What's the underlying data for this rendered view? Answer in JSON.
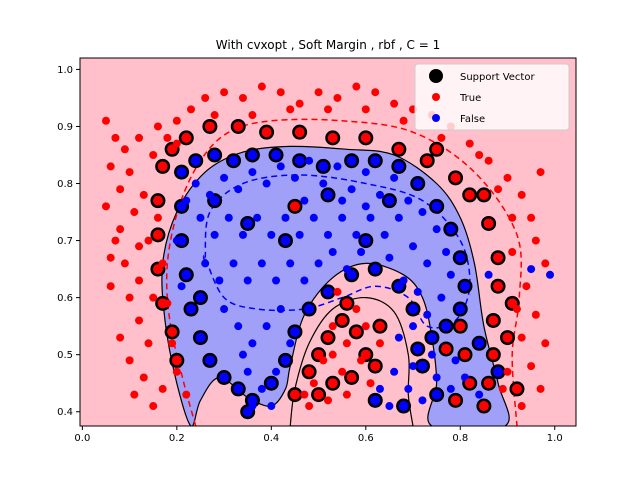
{
  "chart_data": {
    "type": "scatter",
    "title": "With cvxopt , Soft Margin , rbf , C = 1",
    "xlabel": "",
    "ylabel": "",
    "xlim": [
      -0.005,
      1.045
    ],
    "ylim": [
      0.375,
      1.02
    ],
    "xticks": [
      "0.0",
      "0.2",
      "0.4",
      "0.6",
      "0.8",
      "1.0"
    ],
    "xtick_values": [
      0.0,
      0.2,
      0.4,
      0.6,
      0.8,
      1.0
    ],
    "yticks": [
      "0.4",
      "0.5",
      "0.6",
      "0.7",
      "0.8",
      "0.9",
      "1.0"
    ],
    "ytick_values": [
      0.4,
      0.5,
      0.6,
      0.7,
      0.8,
      0.9,
      1.0
    ],
    "grid": false,
    "legend_position": "top-right",
    "legend": [
      {
        "label": "Support Vector",
        "marker": "black-circle"
      },
      {
        "label": "True",
        "marker": "red-dot"
      },
      {
        "label": "False",
        "marker": "blue-dot"
      }
    ],
    "colors": {
      "true_region": "#ffc0cb",
      "false_region": "#a0a0f8",
      "true_point": "#ff0000",
      "false_point": "#0000ff",
      "support_edge": "#000000",
      "margin_line": "#ff0000",
      "margin_line_false": "#0000ff"
    },
    "decision_boundary": [
      [
        0.23,
        0.375
      ],
      [
        0.2,
        0.45
      ],
      [
        0.175,
        0.56
      ],
      [
        0.17,
        0.66
      ],
      [
        0.2,
        0.75
      ],
      [
        0.26,
        0.82
      ],
      [
        0.34,
        0.855
      ],
      [
        0.44,
        0.865
      ],
      [
        0.56,
        0.86
      ],
      [
        0.66,
        0.85
      ],
      [
        0.75,
        0.8
      ],
      [
        0.8,
        0.74
      ],
      [
        0.83,
        0.66
      ],
      [
        0.85,
        0.55
      ],
      [
        0.88,
        0.45
      ],
      [
        0.895,
        0.375
      ],
      [
        0.74,
        0.375
      ],
      [
        0.75,
        0.45
      ],
      [
        0.74,
        0.53
      ],
      [
        0.72,
        0.6
      ],
      [
        0.68,
        0.64
      ],
      [
        0.6,
        0.66
      ],
      [
        0.53,
        0.635
      ],
      [
        0.47,
        0.57
      ],
      [
        0.44,
        0.48
      ],
      [
        0.43,
        0.44
      ],
      [
        0.4,
        0.41
      ],
      [
        0.35,
        0.425
      ],
      [
        0.29,
        0.46
      ],
      [
        0.25,
        0.42
      ]
    ],
    "inner_region": [
      [
        0.44,
        0.375
      ],
      [
        0.45,
        0.44
      ],
      [
        0.48,
        0.52
      ],
      [
        0.53,
        0.58
      ],
      [
        0.6,
        0.6
      ],
      [
        0.66,
        0.575
      ],
      [
        0.69,
        0.5
      ],
      [
        0.69,
        0.43
      ],
      [
        0.7,
        0.375
      ]
    ],
    "margin_true": [
      [
        0.24,
        0.375
      ],
      [
        0.215,
        0.45
      ],
      [
        0.185,
        0.56
      ],
      [
        0.18,
        0.66
      ],
      [
        0.205,
        0.76
      ],
      [
        0.25,
        0.84
      ],
      [
        0.31,
        0.89
      ],
      [
        0.4,
        0.91
      ],
      [
        0.55,
        0.91
      ],
      [
        0.7,
        0.89
      ],
      [
        0.83,
        0.82
      ],
      [
        0.92,
        0.71
      ],
      [
        0.925,
        0.6
      ],
      [
        0.91,
        0.5
      ],
      [
        0.92,
        0.375
      ]
    ],
    "margin_false": [
      [
        0.26,
        0.67
      ],
      [
        0.27,
        0.75
      ],
      [
        0.34,
        0.8
      ],
      [
        0.46,
        0.815
      ],
      [
        0.6,
        0.8
      ],
      [
        0.72,
        0.77
      ],
      [
        0.8,
        0.7
      ],
      [
        0.82,
        0.62
      ],
      [
        0.79,
        0.56
      ],
      [
        0.73,
        0.55
      ],
      [
        0.69,
        0.6
      ],
      [
        0.62,
        0.62
      ],
      [
        0.55,
        0.6
      ],
      [
        0.47,
        0.58
      ],
      [
        0.37,
        0.58
      ],
      [
        0.3,
        0.6
      ],
      [
        0.26,
        0.67
      ]
    ],
    "true_points": [
      [
        0.05,
        0.91
      ],
      [
        0.07,
        0.88
      ],
      [
        0.06,
        0.83
      ],
      [
        0.09,
        0.86
      ],
      [
        0.08,
        0.79
      ],
      [
        0.05,
        0.76
      ],
      [
        0.1,
        0.82
      ],
      [
        0.12,
        0.88
      ],
      [
        0.11,
        0.75
      ],
      [
        0.07,
        0.7
      ],
      [
        0.09,
        0.66
      ],
      [
        0.06,
        0.62
      ],
      [
        0.1,
        0.6
      ],
      [
        0.12,
        0.56
      ],
      [
        0.08,
        0.53
      ],
      [
        0.1,
        0.49
      ],
      [
        0.13,
        0.46
      ],
      [
        0.11,
        0.43
      ],
      [
        0.15,
        0.41
      ],
      [
        0.14,
        0.52
      ],
      [
        0.12,
        0.63
      ],
      [
        0.14,
        0.7
      ],
      [
        0.13,
        0.78
      ],
      [
        0.15,
        0.85
      ],
      [
        0.16,
        0.9
      ],
      [
        0.18,
        0.88
      ],
      [
        0.2,
        0.91
      ],
      [
        0.23,
        0.93
      ],
      [
        0.26,
        0.95
      ],
      [
        0.3,
        0.96
      ],
      [
        0.34,
        0.95
      ],
      [
        0.38,
        0.97
      ],
      [
        0.42,
        0.96
      ],
      [
        0.46,
        0.94
      ],
      [
        0.5,
        0.96
      ],
      [
        0.54,
        0.95
      ],
      [
        0.58,
        0.97
      ],
      [
        0.62,
        0.96
      ],
      [
        0.66,
        0.94
      ],
      [
        0.7,
        0.93
      ],
      [
        0.74,
        0.92
      ],
      [
        0.78,
        0.9
      ],
      [
        0.82,
        0.87
      ],
      [
        0.86,
        0.84
      ],
      [
        0.9,
        0.81
      ],
      [
        0.93,
        0.78
      ],
      [
        0.95,
        0.74
      ],
      [
        0.97,
        0.82
      ],
      [
        0.96,
        0.7
      ],
      [
        0.98,
        0.66
      ],
      [
        0.94,
        0.62
      ],
      [
        0.96,
        0.57
      ],
      [
        0.98,
        0.52
      ],
      [
        0.95,
        0.48
      ],
      [
        0.97,
        0.44
      ],
      [
        0.93,
        0.41
      ],
      [
        0.16,
        0.74
      ],
      [
        0.17,
        0.66
      ],
      [
        0.18,
        0.59
      ],
      [
        0.19,
        0.52
      ],
      [
        0.2,
        0.47
      ],
      [
        0.22,
        0.43
      ],
      [
        0.17,
        0.44
      ],
      [
        0.15,
        0.6
      ],
      [
        0.08,
        0.72
      ],
      [
        0.06,
        0.67
      ],
      [
        0.12,
        0.69
      ],
      [
        0.2,
        0.87
      ],
      [
        0.28,
        0.92
      ],
      [
        0.36,
        0.92
      ],
      [
        0.44,
        0.93
      ],
      [
        0.52,
        0.93
      ],
      [
        0.6,
        0.93
      ],
      [
        0.68,
        0.91
      ],
      [
        0.76,
        0.88
      ],
      [
        0.84,
        0.85
      ],
      [
        0.88,
        0.79
      ],
      [
        0.91,
        0.74
      ],
      [
        0.91,
        0.68
      ],
      [
        0.92,
        0.58
      ],
      [
        0.93,
        0.53
      ],
      [
        0.9,
        0.47
      ],
      [
        0.89,
        0.44
      ],
      [
        0.53,
        0.55
      ],
      [
        0.56,
        0.52
      ],
      [
        0.59,
        0.49
      ],
      [
        0.55,
        0.47
      ],
      [
        0.51,
        0.49
      ],
      [
        0.49,
        0.45
      ],
      [
        0.52,
        0.42
      ],
      [
        0.56,
        0.43
      ],
      [
        0.6,
        0.55
      ],
      [
        0.63,
        0.52
      ],
      [
        0.61,
        0.45
      ],
      [
        0.58,
        0.58
      ],
      [
        0.54,
        0.61
      ],
      [
        0.48,
        0.41
      ],
      [
        0.53,
        0.5
      ],
      [
        0.47,
        0.43
      ]
    ],
    "false_points": [
      [
        0.24,
        0.8
      ],
      [
        0.27,
        0.78
      ],
      [
        0.3,
        0.81
      ],
      [
        0.33,
        0.79
      ],
      [
        0.36,
        0.82
      ],
      [
        0.39,
        0.8
      ],
      [
        0.42,
        0.83
      ],
      [
        0.45,
        0.81
      ],
      [
        0.48,
        0.84
      ],
      [
        0.51,
        0.8
      ],
      [
        0.54,
        0.83
      ],
      [
        0.57,
        0.79
      ],
      [
        0.6,
        0.82
      ],
      [
        0.63,
        0.78
      ],
      [
        0.66,
        0.81
      ],
      [
        0.69,
        0.77
      ],
      [
        0.72,
        0.75
      ],
      [
        0.75,
        0.72
      ],
      [
        0.77,
        0.68
      ],
      [
        0.78,
        0.64
      ],
      [
        0.76,
        0.6
      ],
      [
        0.73,
        0.57
      ],
      [
        0.7,
        0.55
      ],
      [
        0.67,
        0.53
      ],
      [
        0.25,
        0.74
      ],
      [
        0.28,
        0.71
      ],
      [
        0.31,
        0.74
      ],
      [
        0.34,
        0.71
      ],
      [
        0.37,
        0.74
      ],
      [
        0.4,
        0.71
      ],
      [
        0.43,
        0.74
      ],
      [
        0.46,
        0.71
      ],
      [
        0.49,
        0.74
      ],
      [
        0.52,
        0.71
      ],
      [
        0.55,
        0.74
      ],
      [
        0.58,
        0.71
      ],
      [
        0.61,
        0.74
      ],
      [
        0.64,
        0.71
      ],
      [
        0.67,
        0.74
      ],
      [
        0.7,
        0.69
      ],
      [
        0.73,
        0.66
      ],
      [
        0.26,
        0.66
      ],
      [
        0.29,
        0.63
      ],
      [
        0.32,
        0.66
      ],
      [
        0.35,
        0.63
      ],
      [
        0.38,
        0.66
      ],
      [
        0.41,
        0.63
      ],
      [
        0.44,
        0.66
      ],
      [
        0.47,
        0.63
      ],
      [
        0.5,
        0.66
      ],
      [
        0.53,
        0.68
      ],
      [
        0.56,
        0.65
      ],
      [
        0.59,
        0.68
      ],
      [
        0.62,
        0.65
      ],
      [
        0.65,
        0.67
      ],
      [
        0.68,
        0.63
      ],
      [
        0.71,
        0.61
      ],
      [
        0.3,
        0.58
      ],
      [
        0.33,
        0.55
      ],
      [
        0.36,
        0.52
      ],
      [
        0.39,
        0.55
      ],
      [
        0.42,
        0.58
      ],
      [
        0.35,
        0.47
      ],
      [
        0.38,
        0.44
      ],
      [
        0.41,
        0.47
      ],
      [
        0.36,
        0.41
      ],
      [
        0.4,
        0.41
      ],
      [
        0.34,
        0.5
      ],
      [
        0.44,
        0.52
      ],
      [
        0.63,
        0.44
      ],
      [
        0.66,
        0.47
      ],
      [
        0.69,
        0.44
      ],
      [
        0.72,
        0.42
      ],
      [
        0.75,
        0.46
      ],
      [
        0.78,
        0.44
      ],
      [
        0.81,
        0.46
      ],
      [
        0.84,
        0.43
      ],
      [
        0.65,
        0.41
      ],
      [
        0.7,
        0.48
      ],
      [
        0.74,
        0.5
      ],
      [
        0.79,
        0.49
      ],
      [
        0.22,
        0.77
      ],
      [
        0.2,
        0.7
      ],
      [
        0.21,
        0.62
      ],
      [
        0.95,
        0.65
      ],
      [
        0.99,
        0.64
      ],
      [
        0.86,
        0.64
      ],
      [
        0.47,
        0.77
      ],
      [
        0.55,
        0.77
      ],
      [
        0.6,
        0.76
      ]
    ],
    "support_vectors_true": [
      [
        0.17,
        0.83
      ],
      [
        0.19,
        0.86
      ],
      [
        0.22,
        0.88
      ],
      [
        0.27,
        0.9
      ],
      [
        0.33,
        0.9
      ],
      [
        0.39,
        0.89
      ],
      [
        0.46,
        0.89
      ],
      [
        0.53,
        0.88
      ],
      [
        0.6,
        0.88
      ],
      [
        0.67,
        0.86
      ],
      [
        0.73,
        0.84
      ],
      [
        0.79,
        0.81
      ],
      [
        0.82,
        0.78
      ],
      [
        0.86,
        0.73
      ],
      [
        0.88,
        0.67
      ],
      [
        0.88,
        0.62
      ],
      [
        0.87,
        0.56
      ],
      [
        0.87,
        0.5
      ],
      [
        0.86,
        0.45
      ],
      [
        0.85,
        0.41
      ],
      [
        0.16,
        0.77
      ],
      [
        0.16,
        0.71
      ],
      [
        0.16,
        0.65
      ],
      [
        0.17,
        0.59
      ],
      [
        0.19,
        0.54
      ],
      [
        0.2,
        0.49
      ],
      [
        0.45,
        0.76
      ],
      [
        0.5,
        0.5
      ],
      [
        0.52,
        0.53
      ],
      [
        0.55,
        0.56
      ],
      [
        0.58,
        0.54
      ],
      [
        0.6,
        0.5
      ],
      [
        0.57,
        0.46
      ],
      [
        0.53,
        0.45
      ],
      [
        0.5,
        0.43
      ],
      [
        0.56,
        0.59
      ],
      [
        0.63,
        0.55
      ],
      [
        0.62,
        0.48
      ],
      [
        0.77,
        0.51
      ],
      [
        0.8,
        0.55
      ],
      [
        0.81,
        0.5
      ],
      [
        0.82,
        0.45
      ],
      [
        0.79,
        0.42
      ],
      [
        0.45,
        0.43
      ],
      [
        0.48,
        0.47
      ],
      [
        0.9,
        0.53
      ],
      [
        0.91,
        0.59
      ],
      [
        0.92,
        0.44
      ],
      [
        0.85,
        0.78
      ],
      [
        0.75,
        0.86
      ]
    ],
    "support_vectors_false": [
      [
        0.21,
        0.82
      ],
      [
        0.24,
        0.84
      ],
      [
        0.28,
        0.85
      ],
      [
        0.32,
        0.84
      ],
      [
        0.36,
        0.85
      ],
      [
        0.41,
        0.85
      ],
      [
        0.46,
        0.84
      ],
      [
        0.51,
        0.83
      ],
      [
        0.57,
        0.84
      ],
      [
        0.62,
        0.84
      ],
      [
        0.67,
        0.83
      ],
      [
        0.71,
        0.8
      ],
      [
        0.75,
        0.76
      ],
      [
        0.78,
        0.72
      ],
      [
        0.8,
        0.67
      ],
      [
        0.81,
        0.62
      ],
      [
        0.8,
        0.58
      ],
      [
        0.77,
        0.55
      ],
      [
        0.74,
        0.53
      ],
      [
        0.71,
        0.51
      ],
      [
        0.21,
        0.76
      ],
      [
        0.21,
        0.7
      ],
      [
        0.22,
        0.64
      ],
      [
        0.23,
        0.58
      ],
      [
        0.25,
        0.53
      ],
      [
        0.27,
        0.49
      ],
      [
        0.3,
        0.46
      ],
      [
        0.33,
        0.44
      ],
      [
        0.36,
        0.42
      ],
      [
        0.4,
        0.45
      ],
      [
        0.43,
        0.49
      ],
      [
        0.45,
        0.54
      ],
      [
        0.48,
        0.58
      ],
      [
        0.52,
        0.61
      ],
      [
        0.57,
        0.64
      ],
      [
        0.62,
        0.65
      ],
      [
        0.67,
        0.62
      ],
      [
        0.7,
        0.58
      ],
      [
        0.72,
        0.48
      ],
      [
        0.75,
        0.43
      ],
      [
        0.68,
        0.41
      ],
      [
        0.62,
        0.42
      ],
      [
        0.35,
        0.4
      ],
      [
        0.6,
        0.7
      ],
      [
        0.43,
        0.7
      ],
      [
        0.35,
        0.73
      ],
      [
        0.28,
        0.77
      ],
      [
        0.52,
        0.78
      ],
      [
        0.88,
        0.47
      ],
      [
        0.84,
        0.52
      ],
      [
        0.65,
        0.77
      ],
      [
        0.25,
        0.6
      ]
    ]
  }
}
